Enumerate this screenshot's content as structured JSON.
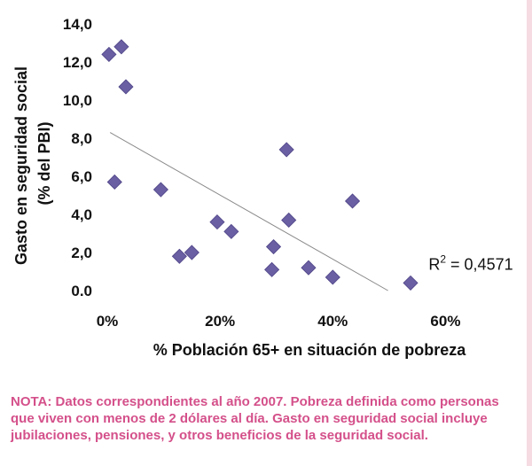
{
  "colors": {
    "marker": "#6a5fa2",
    "trend": "#888888",
    "note": "#d4508a",
    "edge": "#f6dbe3"
  },
  "chart_data": {
    "type": "scatter",
    "xlabel": "% Población 65+ en situación de pobreza",
    "ylabel_lines": [
      "Gasto en seguridad social",
      "(% del PBI)"
    ],
    "xlim": [
      0,
      70
    ],
    "ylim": [
      0,
      14
    ],
    "x_ticks": [
      0,
      20,
      40,
      60
    ],
    "x_tick_labels": [
      "0%",
      "20%",
      "40%",
      "60%"
    ],
    "y_ticks": [
      0,
      2,
      4,
      6,
      8,
      10,
      12,
      14
    ],
    "y_tick_labels": [
      "0.0",
      "2,0",
      "4,0",
      "6,0",
      "8,0",
      "10,0",
      "12,0",
      "14,0"
    ],
    "points": [
      {
        "x": 0.3,
        "y": 12.4
      },
      {
        "x": 2.5,
        "y": 12.8
      },
      {
        "x": 3.3,
        "y": 10.7
      },
      {
        "x": 1.3,
        "y": 5.7
      },
      {
        "x": 9.5,
        "y": 5.3
      },
      {
        "x": 12.8,
        "y": 1.8
      },
      {
        "x": 15,
        "y": 2.0
      },
      {
        "x": 19.5,
        "y": 3.6
      },
      {
        "x": 22,
        "y": 3.1
      },
      {
        "x": 29.2,
        "y": 1.1
      },
      {
        "x": 29.5,
        "y": 2.3
      },
      {
        "x": 31.8,
        "y": 7.4
      },
      {
        "x": 32.2,
        "y": 3.7
      },
      {
        "x": 35.7,
        "y": 1.2
      },
      {
        "x": 40,
        "y": 0.7
      },
      {
        "x": 43.5,
        "y": 4.7
      },
      {
        "x": 53.8,
        "y": 0.4
      }
    ],
    "trendline": {
      "x": [
        0.5,
        49.8
      ],
      "y": [
        8.3,
        0.0
      ]
    },
    "annotation": {
      "base": "R",
      "sup": "2",
      "rest": " = 0,4571",
      "x": 57,
      "y": 1.1
    },
    "grid": false
  },
  "note": {
    "lines": [
      "NOTA: Datos correspondientes al año 2007. Pobreza definida como personas",
      "que viven con menos de 2 dólares al día. Gasto en seguridad social incluye",
      "jubilaciones, pensiones, y otros beneficios de la seguridad social."
    ]
  }
}
